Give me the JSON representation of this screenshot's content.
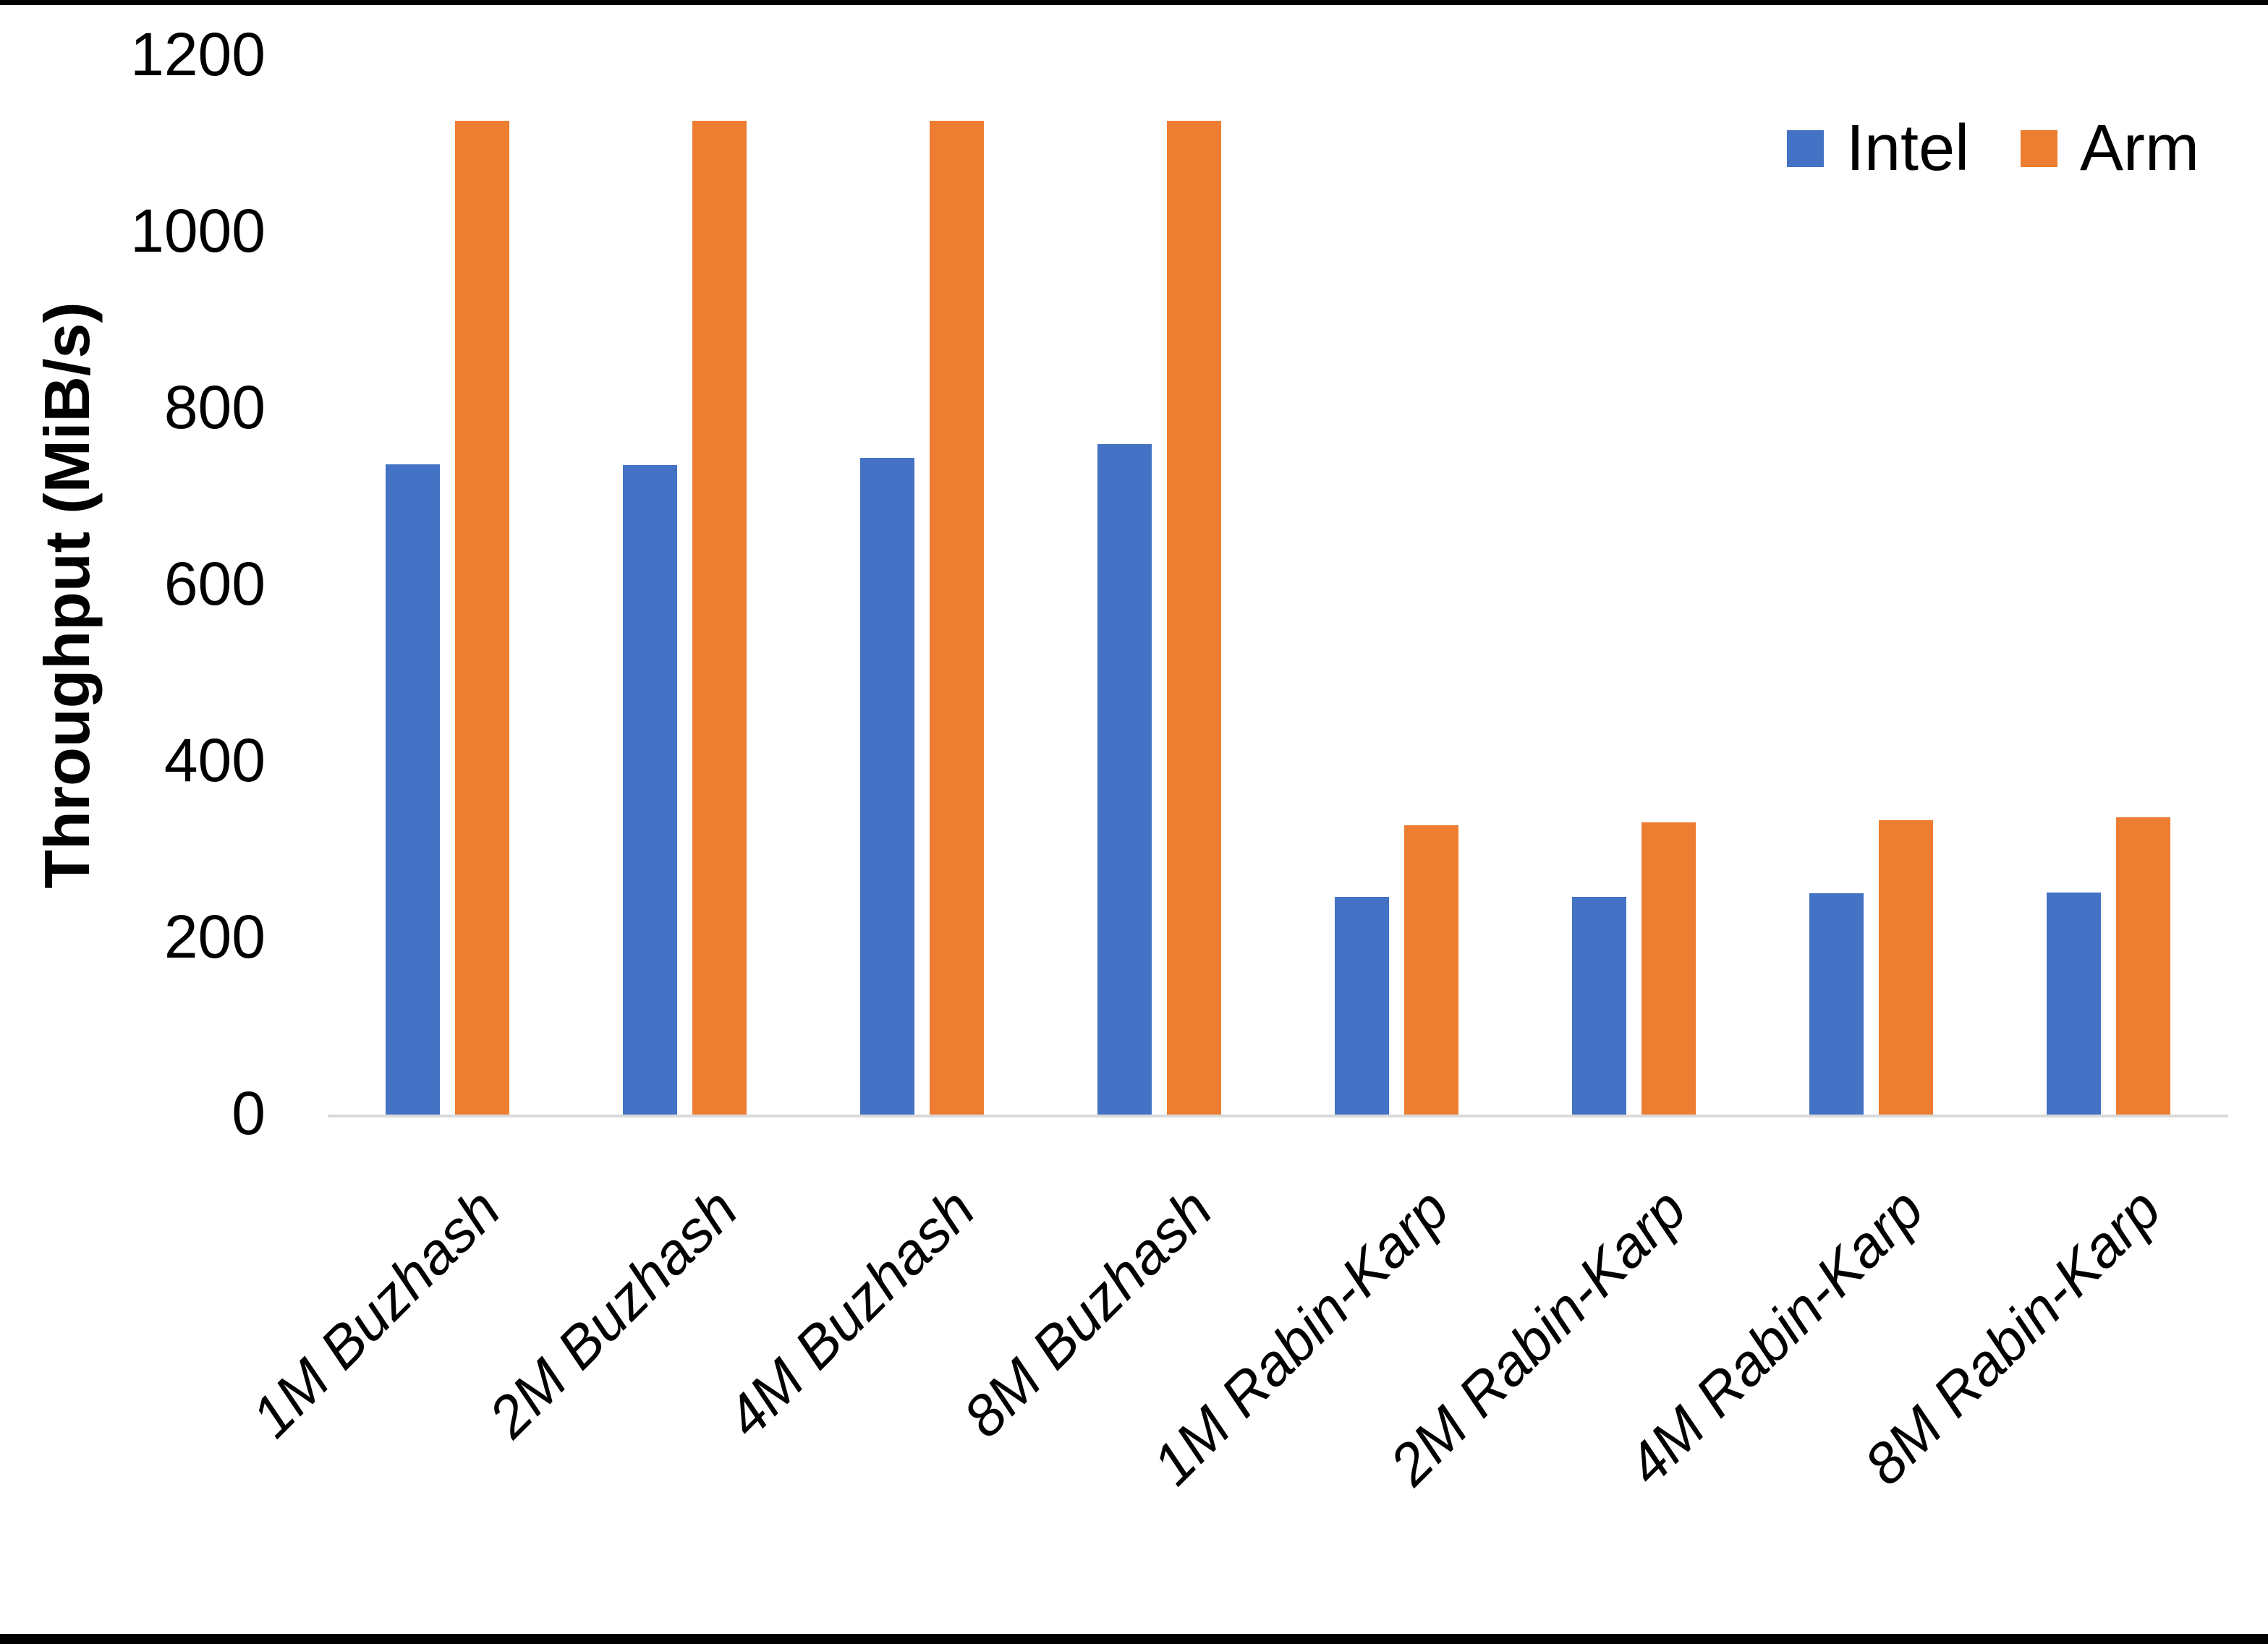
{
  "chart_data": {
    "type": "bar",
    "title": "",
    "xlabel": "",
    "ylabel": "Throughput (MiB/s)",
    "ylim": [
      0,
      1200
    ],
    "yticks": [
      0,
      200,
      400,
      600,
      800,
      1000,
      1200
    ],
    "grid": false,
    "legend_position": "top-right",
    "categories": [
      "1M Buzhash",
      "2M Buzhash",
      "4M Buzhash",
      "8M Buzhash",
      "1M Rabin-Karp",
      "2M Rabin-Karp",
      "4M Rabin-Karp",
      "8M Rabin-Karp"
    ],
    "series": [
      {
        "name": "Intel",
        "color": "#4472C4",
        "values": [
          737,
          736,
          744,
          760,
          247,
          247,
          251,
          252
        ]
      },
      {
        "name": "Arm",
        "color": "#ED7D31",
        "values": [
          1126,
          1126,
          1126,
          1126,
          328,
          331,
          334,
          337
        ]
      }
    ]
  },
  "colors": {
    "axis_line": "#D9D9D9",
    "text": "#000000",
    "background": "#FFFFFF",
    "page_border": "#000000"
  }
}
